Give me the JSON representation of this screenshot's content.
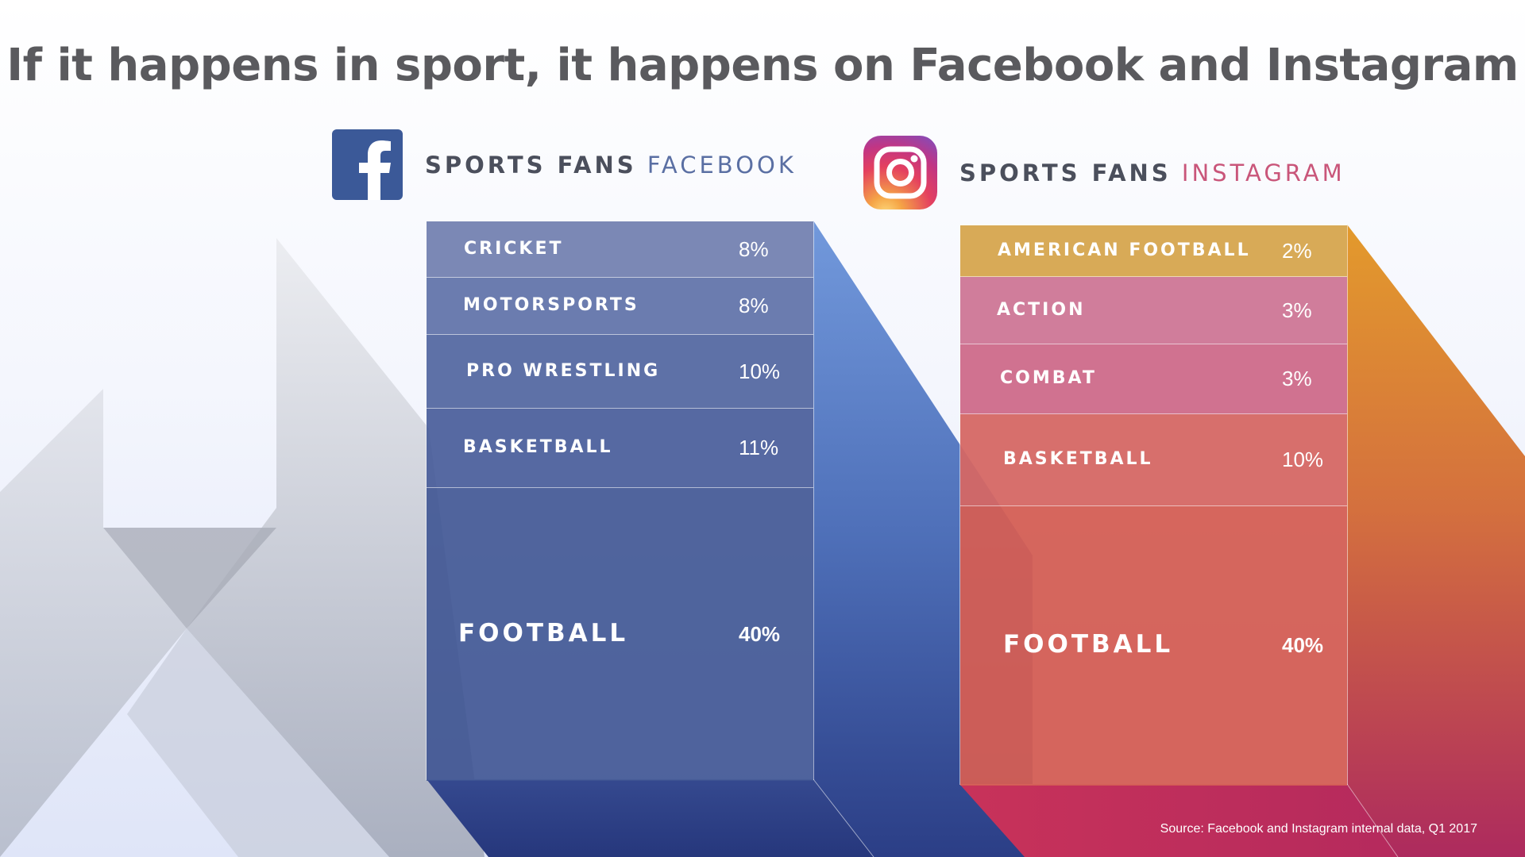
{
  "title": "If it happens in sport, it happens on Facebook and Instagram",
  "colors": {
    "facebook_blue": "#3b5998",
    "instagram_pink": "#c9567a",
    "football_red": "#d4604f",
    "title_gray": "#5a5a5e"
  },
  "facebook_header": {
    "prefix": "SPORTS FANS",
    "platform": "FACEBOOK",
    "icon": "facebook-logo-icon"
  },
  "instagram_header": {
    "prefix": "SPORTS FANS",
    "platform": "INSTAGRAM",
    "icon": "instagram-logo-icon"
  },
  "chart_data": [
    {
      "type": "bar",
      "name": "SPORTS FANS FACEBOOK",
      "categories": [
        "CRICKET",
        "MOTORSPORTS",
        "PRO WRESTLING",
        "BASKETBALL",
        "FOOTBALL"
      ],
      "labels": [
        "8%",
        "8%",
        "10%",
        "11%",
        "40%"
      ],
      "values": [
        8,
        8,
        10,
        11,
        40
      ]
    },
    {
      "type": "bar",
      "name": "SPORTS FANS INSTAGRAM",
      "categories": [
        "AMERICAN FOOTBALL",
        "ACTION",
        "COMBAT",
        "BASKETBALL",
        "FOOTBALL"
      ],
      "labels": [
        "2%",
        "3%",
        "3%",
        "10%",
        "40%"
      ],
      "values": [
        2,
        3,
        3,
        10,
        40
      ]
    }
  ],
  "source": "Source: Facebook and Instagram internal data, Q1 2017"
}
